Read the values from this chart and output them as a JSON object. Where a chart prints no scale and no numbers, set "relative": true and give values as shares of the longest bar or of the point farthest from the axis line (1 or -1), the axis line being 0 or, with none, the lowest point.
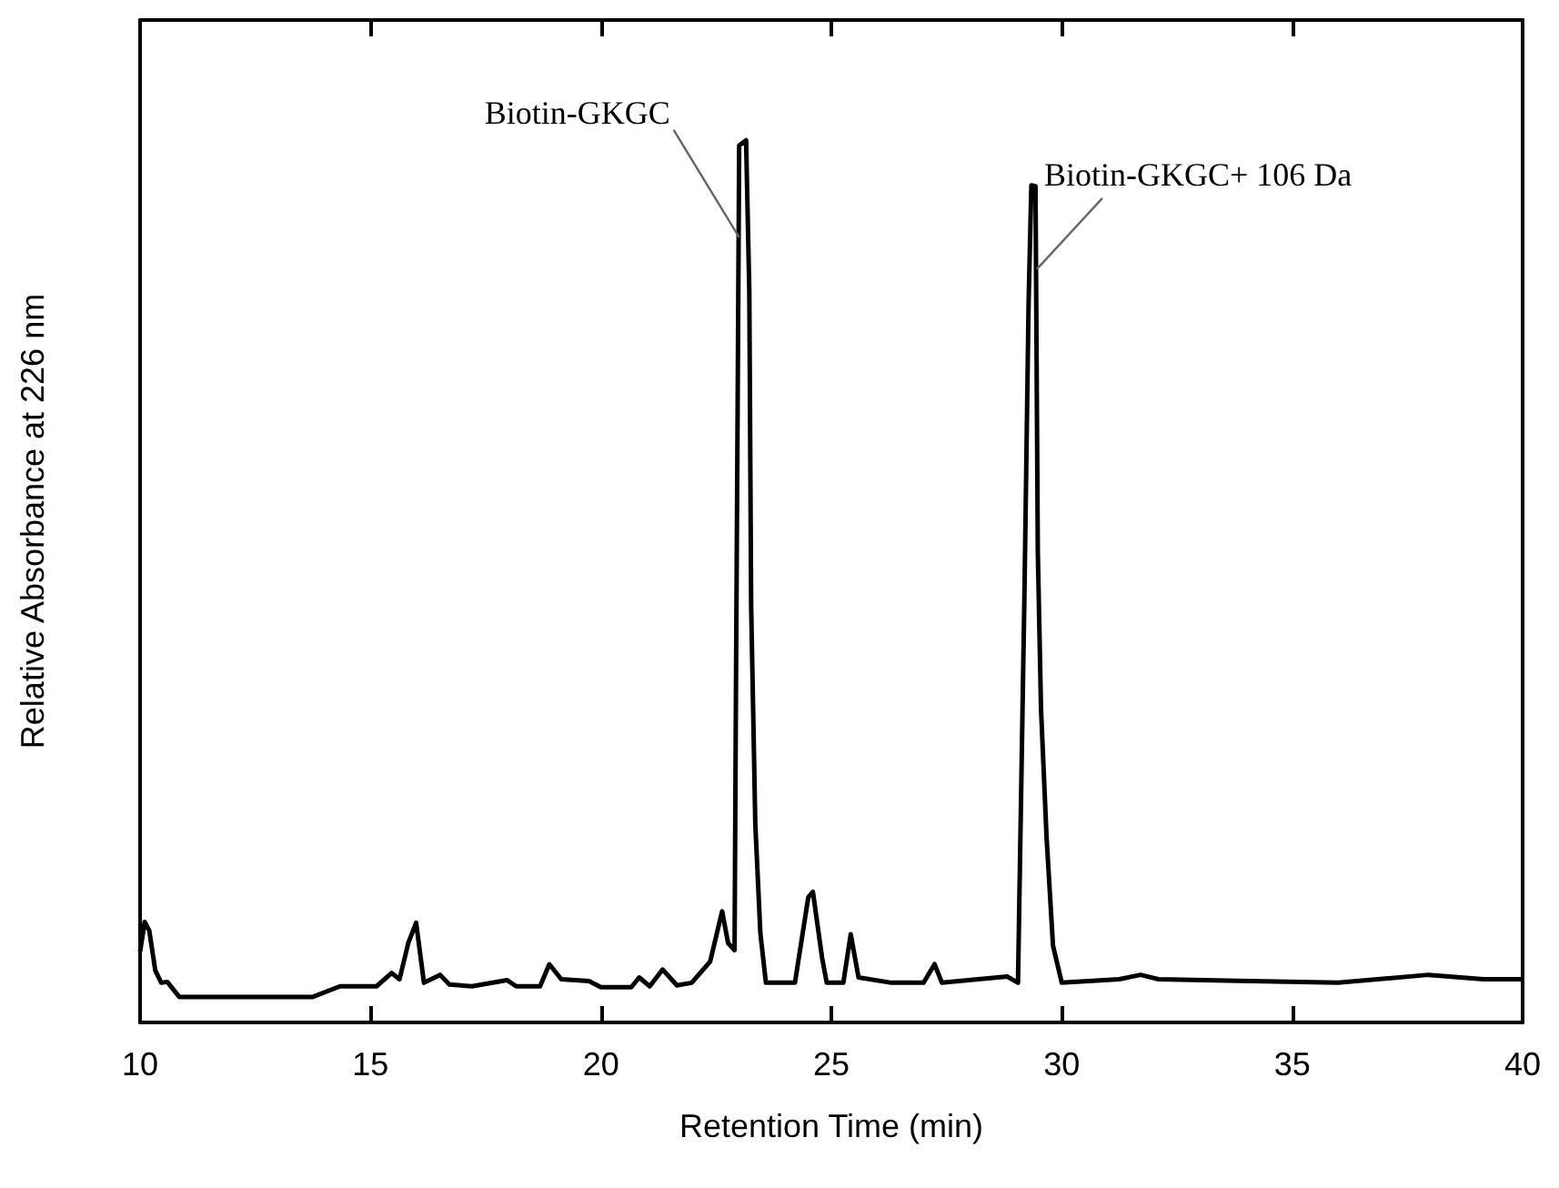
{
  "chart_data": {
    "type": "line",
    "relative": true,
    "xlabel": "Retention Time (min)",
    "ylabel": "Relative Absorbance at 226 nm",
    "xlim": [
      10,
      40
    ],
    "xticks": [
      10,
      15,
      20,
      25,
      30,
      35,
      40
    ],
    "grid": false,
    "marker": "none",
    "line_style": "solid",
    "annotations": [
      {
        "text": "Biotin-GKGC",
        "x": 23.0,
        "y": 0.89
      },
      {
        "text": "Biotin-GKGC+ 106 Da",
        "x": 29.46,
        "y": 0.854
      }
    ],
    "series": [
      {
        "color": "#000000",
        "x": [
          10.0,
          10.1,
          10.2,
          10.33,
          10.46,
          10.59,
          10.85,
          13.75,
          14.34,
          15.13,
          15.46,
          15.63,
          15.82,
          15.99,
          16.16,
          16.51,
          16.71,
          17.2,
          17.96,
          18.16,
          18.68,
          18.88,
          19.14,
          19.74,
          20.0,
          20.66,
          20.83,
          21.06,
          21.34,
          21.65,
          21.97,
          22.37,
          22.63,
          22.76,
          22.9,
          22.93,
          23.0,
          23.15,
          23.22,
          23.26,
          23.35,
          23.46,
          23.58,
          24.21,
          24.5,
          24.6,
          24.8,
          24.9,
          25.26,
          25.42,
          25.59,
          26.3,
          27.0,
          27.24,
          27.4,
          28.82,
          29.05,
          29.19,
          29.28,
          29.34,
          29.43,
          29.48,
          29.55,
          29.67,
          29.81,
          30.0,
          31.25,
          31.71,
          32.1,
          34.08,
          36.0,
          37.96,
          39.15,
          40.0
        ],
        "values": [
          0.08,
          0.114,
          0.104,
          0.059,
          0.045,
          0.046,
          0.029,
          0.029,
          0.041,
          0.041,
          0.056,
          0.049,
          0.09,
          0.113,
          0.045,
          0.054,
          0.043,
          0.041,
          0.048,
          0.041,
          0.041,
          0.066,
          0.049,
          0.047,
          0.04,
          0.04,
          0.051,
          0.041,
          0.06,
          0.042,
          0.045,
          0.069,
          0.126,
          0.09,
          0.082,
          0.375,
          0.994,
          1.0,
          0.829,
          0.472,
          0.225,
          0.101,
          0.045,
          0.045,
          0.142,
          0.148,
          0.073,
          0.045,
          0.045,
          0.1,
          0.051,
          0.045,
          0.045,
          0.066,
          0.045,
          0.052,
          0.045,
          0.485,
          0.815,
          0.949,
          0.948,
          0.534,
          0.355,
          0.21,
          0.087,
          0.045,
          0.049,
          0.054,
          0.049,
          0.047,
          0.045,
          0.054,
          0.049,
          0.049
        ]
      }
    ]
  }
}
